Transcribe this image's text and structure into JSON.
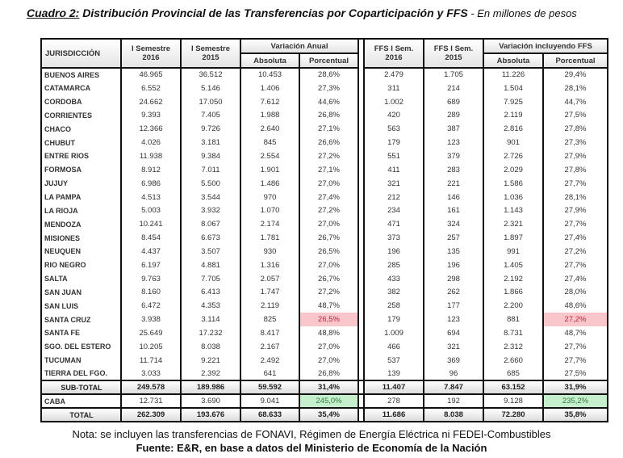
{
  "title": {
    "label": "Cuadro 2:",
    "text": " Distribución Provincial de las Transferencias por Coparticipación y FFS",
    "subtitle": " - En millones de pesos"
  },
  "headers": {
    "jurisdiccion": "JURISDICCIÓN",
    "sem2016_a": "I Semestre",
    "sem2016_b": "2016",
    "sem2015_a": "I Semestre",
    "sem2015_b": "2015",
    "var_anual": "Variación Anual",
    "absoluta": "Absoluta",
    "porcentual": "Porcentual",
    "ffs2016_a": "FFS I Sem.",
    "ffs2016_b": "2016",
    "ffs2015_a": "FFS I Sem.",
    "ffs2015_b": "2015",
    "var_ffs": "Variación incluyendo FFS",
    "absoluta2": "Absoluta",
    "porcentual2": "Porcentual"
  },
  "rows": [
    [
      "BUENOS AIRES",
      "46.965",
      "36.512",
      "10.453",
      "28,6%",
      "2.479",
      "1.705",
      "11.226",
      "29,4%"
    ],
    [
      "CATAMARCA",
      "6.552",
      "5.146",
      "1.406",
      "27,3%",
      "311",
      "214",
      "1.504",
      "28,1%"
    ],
    [
      "CORDOBA",
      "24.662",
      "17.050",
      "7.612",
      "44,6%",
      "1.002",
      "689",
      "7.925",
      "44,7%"
    ],
    [
      "CORRIENTES",
      "9.393",
      "7.405",
      "1.988",
      "26,8%",
      "420",
      "289",
      "2.119",
      "27,5%"
    ],
    [
      "CHACO",
      "12.366",
      "9.726",
      "2.640",
      "27,1%",
      "563",
      "387",
      "2.816",
      "27,8%"
    ],
    [
      "CHUBUT",
      "4.026",
      "3.181",
      "845",
      "26,6%",
      "179",
      "123",
      "901",
      "27,3%"
    ],
    [
      "ENTRE RIOS",
      "11.938",
      "9.384",
      "2.554",
      "27,2%",
      "551",
      "379",
      "2.726",
      "27,9%"
    ],
    [
      "FORMOSA",
      "8.912",
      "7.011",
      "1.901",
      "27,1%",
      "411",
      "283",
      "2.029",
      "27,8%"
    ],
    [
      "JUJUY",
      "6.986",
      "5.500",
      "1.486",
      "27,0%",
      "321",
      "221",
      "1.586",
      "27,7%"
    ],
    [
      "LA PAMPA",
      "4.513",
      "3.544",
      "970",
      "27,4%",
      "212",
      "146",
      "1.036",
      "28,1%"
    ],
    [
      "LA RIOJA",
      "5.003",
      "3.932",
      "1.070",
      "27,2%",
      "234",
      "161",
      "1.143",
      "27,9%"
    ],
    [
      "MENDOZA",
      "10.241",
      "8.067",
      "2.174",
      "27,0%",
      "471",
      "324",
      "2.321",
      "27,7%"
    ],
    [
      "MISIONES",
      "8.454",
      "6.673",
      "1.781",
      "26,7%",
      "373",
      "257",
      "1.897",
      "27,4%"
    ],
    [
      "NEUQUEN",
      "4.437",
      "3.507",
      "930",
      "26,5%",
      "196",
      "135",
      "991",
      "27,2%"
    ],
    [
      "RIO NEGRO",
      "6.197",
      "4.881",
      "1.316",
      "27,0%",
      "285",
      "196",
      "1.405",
      "27,7%"
    ],
    [
      "SALTA",
      "9.763",
      "7.705",
      "2.057",
      "26,7%",
      "433",
      "298",
      "2.192",
      "27,4%"
    ],
    [
      "SAN JUAN",
      "8.160",
      "6.413",
      "1.747",
      "27,2%",
      "382",
      "262",
      "1.866",
      "28,0%"
    ],
    [
      "SAN LUIS",
      "6.472",
      "4.353",
      "2.119",
      "48,7%",
      "258",
      "177",
      "2.200",
      "48,6%"
    ],
    [
      "SANTA CRUZ",
      "3.938",
      "3.114",
      "825",
      "26,5%",
      "179",
      "123",
      "881",
      "27,2%"
    ],
    [
      "SANTA FE",
      "25.649",
      "17.232",
      "8.417",
      "48,8%",
      "1.009",
      "694",
      "8.731",
      "48,7%"
    ],
    [
      "SGO. DEL ESTERO",
      "10.205",
      "8.038",
      "2.167",
      "27,0%",
      "466",
      "321",
      "2.312",
      "27,7%"
    ],
    [
      "TUCUMAN",
      "11.714",
      "9.221",
      "2.492",
      "27,0%",
      "537",
      "369",
      "2.660",
      "27,7%"
    ],
    [
      "TIERRA DEL FGO.",
      "3.033",
      "2.392",
      "641",
      "26,8%",
      "139",
      "96",
      "685",
      "27,5%"
    ]
  ],
  "subtotal": [
    "SUB-TOTAL",
    "249.578",
    "189.986",
    "59.592",
    "31,4%",
    "11.407",
    "7.847",
    "63.152",
    "31,9%"
  ],
  "caba": [
    "CABA",
    "12.731",
    "3.690",
    "9.041",
    "245,0%",
    "278",
    "192",
    "9.128",
    "235,2%"
  ],
  "total": [
    "TOTAL",
    "262.309",
    "193.676",
    "68.633",
    "35,4%",
    "11.686",
    "8.038",
    "72.280",
    "35,8%"
  ],
  "highlights": {
    "red_row": "SANTA CRUZ",
    "red": "#f9c6cc",
    "green": "#c6efce"
  },
  "footer": {
    "note": "Nota: se incluyen las transferencias de FONAVI, Régimen de Energía Eléctrica ni FEDEI-Combustibles",
    "source": "Fuente: E&R, en base a datos del Ministerio de Economía de la Nación"
  }
}
